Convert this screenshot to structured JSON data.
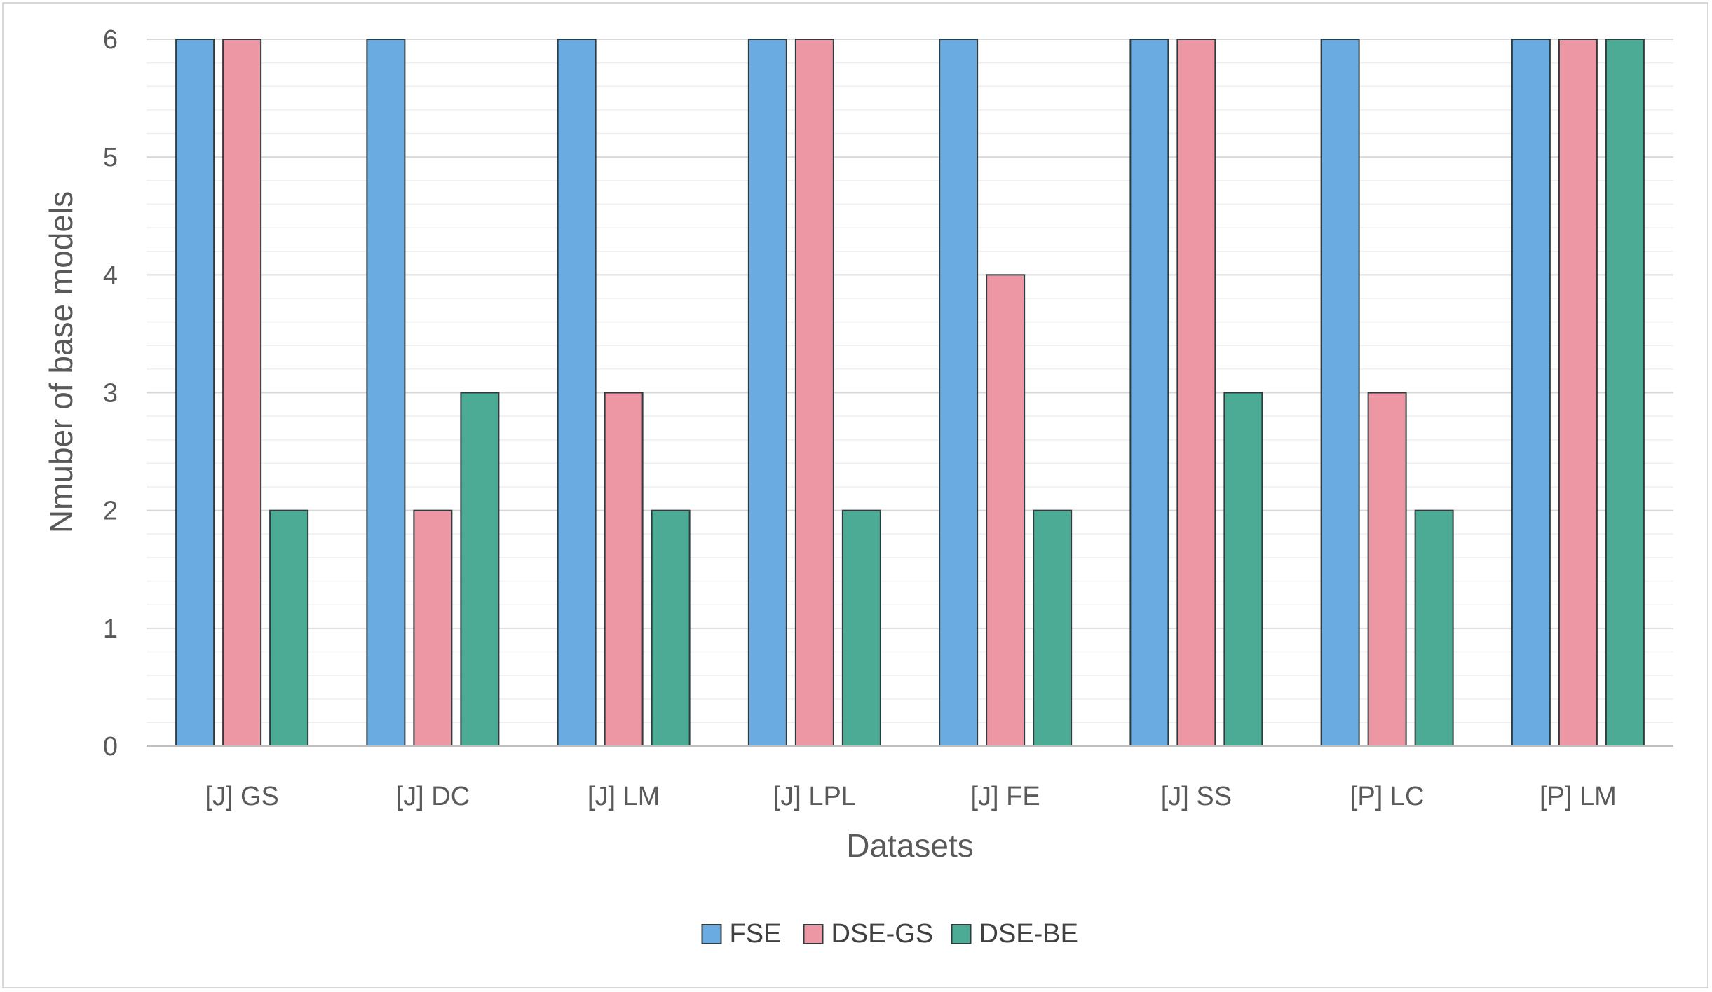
{
  "chart_data": {
    "type": "bar",
    "title": "",
    "xlabel": "Datasets",
    "ylabel": "Nmuber of base models",
    "categories": [
      "[J] GS",
      "[J] DC",
      "[J] LM",
      "[J] LPL",
      "[J] FE",
      "[J] SS",
      "[P] LC",
      "[P] LM"
    ],
    "series": [
      {
        "name": "FSE",
        "color": "#6aace2",
        "values": [
          6,
          6,
          6,
          6,
          6,
          6,
          6,
          6
        ]
      },
      {
        "name": "DSE-GS",
        "color": "#ec97a3",
        "values": [
          6,
          2,
          3,
          6,
          4,
          6,
          3,
          6
        ]
      },
      {
        "name": "DSE-BE",
        "color": "#4bab95",
        "values": [
          2,
          3,
          2,
          2,
          2,
          3,
          2,
          6
        ]
      }
    ],
    "ylim": [
      0,
      6
    ],
    "yticks": [
      0,
      1,
      2,
      3,
      4,
      5,
      6
    ],
    "grid": "major and minor horizontal",
    "legend_position": "bottom"
  }
}
